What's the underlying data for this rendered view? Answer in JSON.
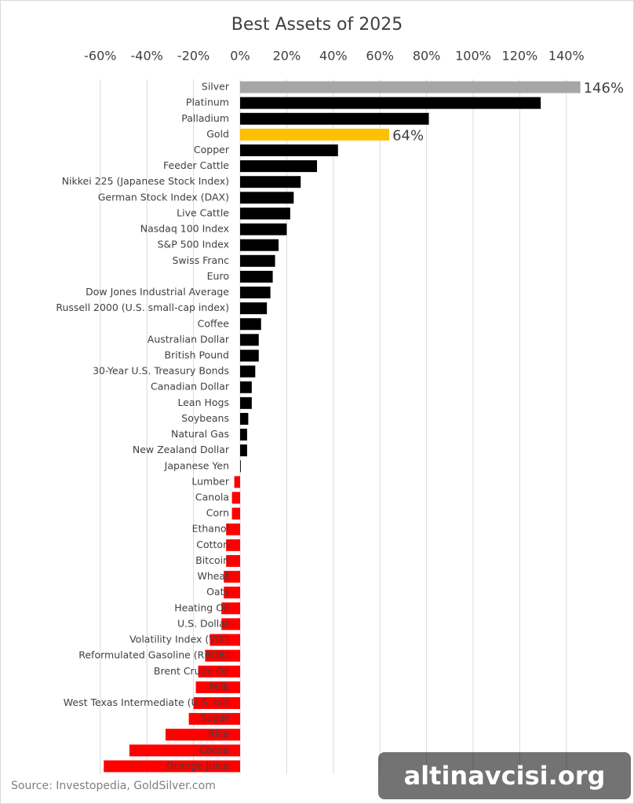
{
  "chart_data": {
    "type": "barh",
    "title": "Best Assets of 2025",
    "categories": [
      "Silver",
      "Platinum",
      "Palladium",
      "Gold",
      "Copper",
      "Feeder Cattle",
      "Nikkei 225 (Japanese Stock Index)",
      "German Stock Index (DAX)",
      "Live Cattle",
      "Nasdaq 100 Index",
      "S&P 500 Index",
      "Swiss Franc",
      "Euro",
      "Dow Jones Industrial Average",
      "Russell 2000 (U.S. small-cap index)",
      "Coffee",
      "Australian Dollar",
      "British Pound",
      "30-Year U.S. Treasury Bonds",
      "Canadian Dollar",
      "Lean Hogs",
      "Soybeans",
      "Natural Gas",
      "New Zealand Dollar",
      "Japanese Yen",
      "Lumber",
      "Canola",
      "Corn",
      "Ethanol",
      "Cotton",
      "Bitcoin",
      "Wheat",
      "Oats",
      "Heating Oil",
      "U.S. Dollar",
      "Volatility Index (VIX)",
      "Reformulated Gasoline (RBOB)",
      "Brent Crude Oil",
      "Milk",
      "West Texas Intermediate (U.S. oil)",
      "Sugar",
      "Rice",
      "Cocoa",
      "Orange Juice"
    ],
    "values": [
      146,
      129,
      81,
      64,
      42,
      33,
      26,
      23,
      21.5,
      20,
      16.5,
      15,
      14,
      13,
      11.5,
      9,
      8,
      8,
      6.5,
      5,
      5,
      3.5,
      3,
      3,
      0.3,
      -2.5,
      -3.5,
      -3.5,
      -6,
      -6,
      -6,
      -7,
      -7,
      -8,
      -8,
      -13,
      -15,
      -18,
      -19,
      -20,
      -22,
      -32,
      -47.5,
      -58.5
    ],
    "value_labels": [
      "146%",
      null,
      null,
      "64%",
      null,
      null,
      null,
      null,
      null,
      null,
      null,
      null,
      null,
      null,
      null,
      null,
      null,
      null,
      null,
      null,
      null,
      null,
      null,
      null,
      null,
      null,
      null,
      null,
      null,
      null,
      null,
      null,
      null,
      null,
      null,
      null,
      null,
      null,
      null,
      null,
      null,
      null,
      null,
      null
    ],
    "colors": [
      "#a6a6a6",
      "#000000",
      "#000000",
      "#ffc000",
      "#000000",
      "#000000",
      "#000000",
      "#000000",
      "#000000",
      "#000000",
      "#000000",
      "#000000",
      "#000000",
      "#000000",
      "#000000",
      "#000000",
      "#000000",
      "#000000",
      "#000000",
      "#000000",
      "#000000",
      "#000000",
      "#000000",
      "#000000",
      "#000000",
      "#ff0000",
      "#ff0000",
      "#ff0000",
      "#ff0000",
      "#ff0000",
      "#ff0000",
      "#ff0000",
      "#ff0000",
      "#ff0000",
      "#ff0000",
      "#ff0000",
      "#ff0000",
      "#ff0000",
      "#ff0000",
      "#ff0000",
      "#ff0000",
      "#ff0000",
      "#ff0000",
      "#ff0000"
    ],
    "xlim": [
      -65,
      150
    ],
    "xticks": [
      {
        "value": -60,
        "label": "-60%"
      },
      {
        "value": -40,
        "label": "-40%"
      },
      {
        "value": -20,
        "label": "-20%"
      },
      {
        "value": 0,
        "label": "0%"
      },
      {
        "value": 20,
        "label": "20%"
      },
      {
        "value": 40,
        "label": "40%"
      },
      {
        "value": 60,
        "label": "60%"
      },
      {
        "value": 80,
        "label": "80%"
      },
      {
        "value": 100,
        "label": "100%"
      },
      {
        "value": 120,
        "label": "120%"
      },
      {
        "value": 140,
        "label": "140%"
      }
    ],
    "grid": true,
    "source": "Source: Investopedia, GoldSilver.com",
    "watermark": "altinavcisi.org"
  }
}
